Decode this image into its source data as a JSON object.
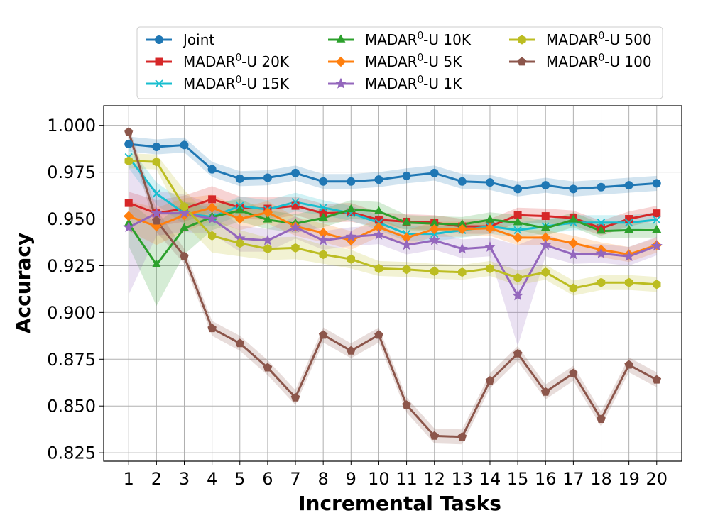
{
  "chart_data": {
    "type": "line",
    "title": "",
    "xlabel": "Incremental Tasks",
    "ylabel": "Accuracy",
    "x": [
      1,
      2,
      3,
      4,
      5,
      6,
      7,
      8,
      9,
      10,
      11,
      12,
      13,
      14,
      15,
      16,
      17,
      18,
      19,
      20
    ],
    "xlim": [
      0.1,
      20.9
    ],
    "ylim": [
      0.8205,
      1.0105
    ],
    "yticks": [
      0.825,
      0.85,
      0.875,
      0.9,
      0.925,
      0.95,
      0.975,
      1.0
    ],
    "ytick_labels": [
      "0.825",
      "0.850",
      "0.875",
      "0.900",
      "0.925",
      "0.950",
      "0.975",
      "1.000"
    ],
    "xtick_labels": [
      "1",
      "2",
      "3",
      "4",
      "5",
      "6",
      "7",
      "8",
      "9",
      "10",
      "11",
      "12",
      "13",
      "14",
      "15",
      "16",
      "17",
      "18",
      "19",
      "20"
    ],
    "grid": true,
    "legend_position": "top-center",
    "series": [
      {
        "name": "Joint",
        "prefix": "Joint",
        "sup": "",
        "suffix": "",
        "color": "#1f77b4",
        "marker": "circle",
        "values": [
          0.99,
          0.9885,
          0.9895,
          0.9765,
          0.9715,
          0.972,
          0.9745,
          0.97,
          0.97,
          0.971,
          0.973,
          0.9745,
          0.97,
          0.9695,
          0.966,
          0.968,
          0.966,
          0.967,
          0.968,
          0.969
        ],
        "band": [
          0.004,
          0.004,
          0.004,
          0.004,
          0.004,
          0.004,
          0.004,
          0.004,
          0.004,
          0.004,
          0.004,
          0.004,
          0.004,
          0.004,
          0.004,
          0.004,
          0.004,
          0.004,
          0.004,
          0.004
        ]
      },
      {
        "name": "MADARθ-U 20K",
        "prefix": "MADAR",
        "sup": "θ",
        "suffix": "-U 20K",
        "color": "#d62728",
        "marker": "square",
        "values": [
          0.9585,
          0.953,
          0.9555,
          0.9605,
          0.956,
          0.9555,
          0.957,
          0.953,
          0.9535,
          0.9495,
          0.9485,
          0.948,
          0.946,
          0.946,
          0.952,
          0.9515,
          0.9505,
          0.945,
          0.95,
          0.953
        ],
        "band": [
          0.006,
          0.007,
          0.007,
          0.007,
          0.006,
          0.006,
          0.005,
          0.005,
          0.005,
          0.004,
          0.004,
          0.004,
          0.004,
          0.004,
          0.004,
          0.004,
          0.004,
          0.004,
          0.004,
          0.004
        ]
      },
      {
        "name": "MADARθ-U 15K",
        "prefix": "MADAR",
        "sup": "θ",
        "suffix": "-U 15K",
        "color": "#17becf",
        "marker": "x",
        "values": [
          0.983,
          0.9635,
          0.953,
          0.951,
          0.957,
          0.955,
          0.959,
          0.956,
          0.953,
          0.948,
          0.942,
          0.942,
          0.944,
          0.946,
          0.944,
          0.946,
          0.948,
          0.948,
          0.948,
          0.9495
        ],
        "band": [
          0.006,
          0.006,
          0.006,
          0.005,
          0.005,
          0.005,
          0.005,
          0.004,
          0.004,
          0.004,
          0.004,
          0.004,
          0.004,
          0.004,
          0.004,
          0.004,
          0.004,
          0.004,
          0.004,
          0.004
        ]
      },
      {
        "name": "MADARθ-U 10K",
        "prefix": "MADAR",
        "sup": "θ",
        "suffix": "-U 10K",
        "color": "#2ca02c",
        "marker": "triangle",
        "values": [
          0.9475,
          0.9255,
          0.945,
          0.951,
          0.9545,
          0.9495,
          0.9475,
          0.9505,
          0.955,
          0.954,
          0.948,
          0.9475,
          0.947,
          0.9495,
          0.948,
          0.945,
          0.9495,
          0.9435,
          0.944,
          0.944
        ],
        "band": [
          0.012,
          0.022,
          0.014,
          0.007,
          0.006,
          0.005,
          0.005,
          0.005,
          0.005,
          0.005,
          0.004,
          0.004,
          0.004,
          0.004,
          0.004,
          0.004,
          0.004,
          0.004,
          0.004,
          0.004
        ]
      },
      {
        "name": "MADARθ-U 5K",
        "prefix": "MADAR",
        "sup": "θ",
        "suffix": "-U 5K",
        "color": "#ff7f0e",
        "marker": "diamond",
        "values": [
          0.9515,
          0.946,
          0.952,
          0.956,
          0.95,
          0.9535,
          0.946,
          0.9425,
          0.9385,
          0.9455,
          0.94,
          0.9445,
          0.9445,
          0.945,
          0.94,
          0.94,
          0.937,
          0.9335,
          0.931,
          0.936
        ],
        "band": [
          0.008,
          0.01,
          0.009,
          0.007,
          0.006,
          0.006,
          0.005,
          0.005,
          0.005,
          0.005,
          0.004,
          0.004,
          0.004,
          0.004,
          0.004,
          0.004,
          0.004,
          0.004,
          0.004,
          0.004
        ]
      },
      {
        "name": "MADARθ-U 1K",
        "prefix": "MADAR",
        "sup": "θ",
        "suffix": "-U 1K",
        "color": "#9467bd",
        "marker": "star",
        "values": [
          0.9455,
          0.953,
          0.953,
          0.95,
          0.9395,
          0.9385,
          0.9455,
          0.9385,
          0.9405,
          0.9415,
          0.936,
          0.9385,
          0.934,
          0.935,
          0.909,
          0.936,
          0.931,
          0.9315,
          0.93,
          0.9355
        ],
        "band": [
          0.036,
          0.012,
          0.01,
          0.008,
          0.007,
          0.006,
          0.006,
          0.005,
          0.005,
          0.005,
          0.005,
          0.005,
          0.005,
          0.005,
          0.027,
          0.006,
          0.005,
          0.005,
          0.005,
          0.005
        ]
      },
      {
        "name": "MADARθ-U 500",
        "prefix": "MADAR",
        "sup": "θ",
        "suffix": "-U 500",
        "color": "#bcbd22",
        "marker": "hexagon",
        "values": [
          0.981,
          0.9805,
          0.9565,
          0.941,
          0.937,
          0.934,
          0.9345,
          0.931,
          0.9285,
          0.9235,
          0.923,
          0.922,
          0.9215,
          0.9235,
          0.9185,
          0.9215,
          0.913,
          0.916,
          0.916,
          0.915
        ],
        "band": [
          0.004,
          0.004,
          0.009,
          0.009,
          0.007,
          0.006,
          0.006,
          0.005,
          0.005,
          0.004,
          0.004,
          0.004,
          0.004,
          0.004,
          0.004,
          0.004,
          0.004,
          0.004,
          0.004,
          0.004
        ]
      },
      {
        "name": "MADARθ-U 100",
        "prefix": "MADAR",
        "sup": "θ",
        "suffix": "-U 100",
        "color": "#8c564b",
        "marker": "pentagon",
        "values": [
          0.9965,
          0.949,
          0.93,
          0.8915,
          0.8835,
          0.8705,
          0.8545,
          0.888,
          0.8795,
          0.888,
          0.8505,
          0.834,
          0.8335,
          0.8635,
          0.878,
          0.8575,
          0.8675,
          0.843,
          0.872,
          0.864
        ],
        "band": [
          0.003,
          0.006,
          0.004,
          0.004,
          0.004,
          0.004,
          0.004,
          0.004,
          0.004,
          0.004,
          0.004,
          0.004,
          0.004,
          0.004,
          0.004,
          0.004,
          0.004,
          0.004,
          0.004,
          0.004
        ]
      }
    ]
  }
}
